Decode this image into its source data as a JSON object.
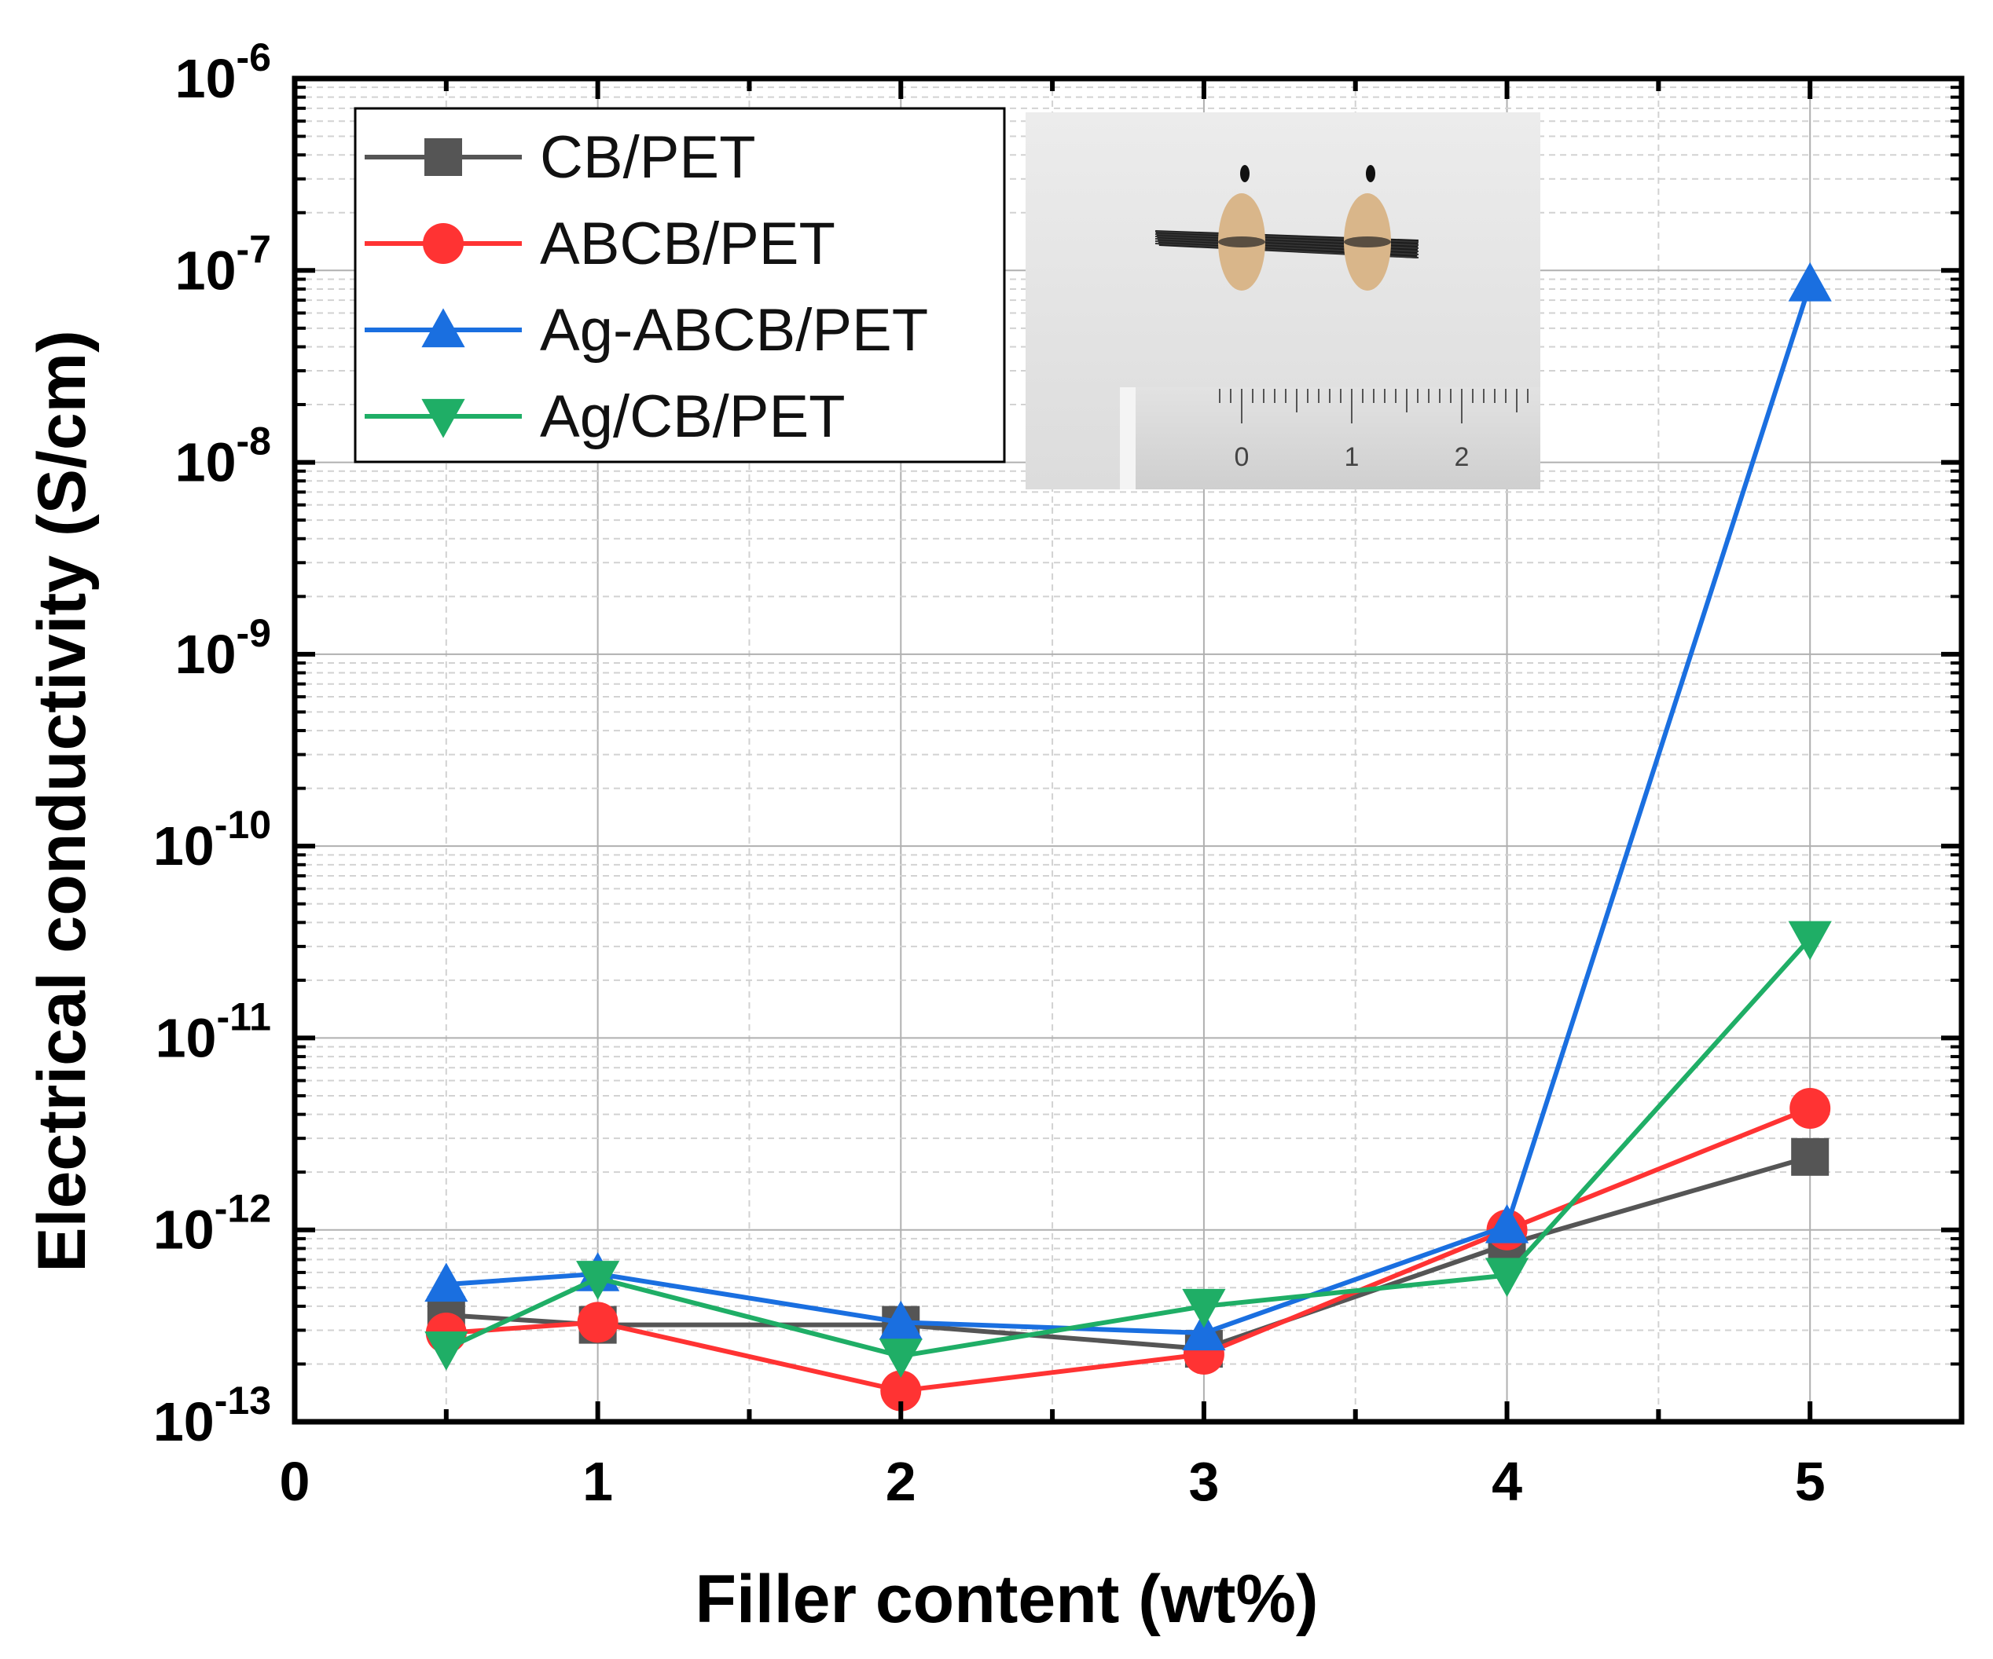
{
  "chart_data": {
    "type": "line",
    "title": "",
    "xlabel": "Filler content (wt%)",
    "ylabel": "Electrical conductivity (S/cm)",
    "xlim": [
      0,
      5.5
    ],
    "ylim": [
      1e-13,
      1e-06
    ],
    "yscale": "log",
    "grid": true,
    "legend_position": "top-left",
    "x_ticks": [
      "0",
      "1",
      "2",
      "3",
      "4",
      "5"
    ],
    "y_ticks": [
      {
        "base": "10",
        "exp": "-13"
      },
      {
        "base": "10",
        "exp": "-12"
      },
      {
        "base": "10",
        "exp": "-11"
      },
      {
        "base": "10",
        "exp": "-10"
      },
      {
        "base": "10",
        "exp": "-9"
      },
      {
        "base": "10",
        "exp": "-8"
      },
      {
        "base": "10",
        "exp": "-7"
      },
      {
        "base": "10",
        "exp": "-6"
      }
    ],
    "x": [
      0.5,
      1,
      2,
      3,
      4,
      5
    ],
    "series": [
      {
        "name": "CB/PET",
        "color": "#555555",
        "marker": "square",
        "values": [
          3.6e-13,
          3.2e-13,
          3.2e-13,
          2.4e-13,
          8.4e-13,
          2.4e-12
        ]
      },
      {
        "name": "ABCB/PET",
        "color": "#ff3333",
        "marker": "circle",
        "values": [
          2.9e-13,
          3.3e-13,
          1.45e-13,
          2.25e-13,
          1e-12,
          4.3e-12
        ]
      },
      {
        "name": "Ag-ABCB/PET",
        "color": "#1a6fe0",
        "marker": "triangle-up",
        "values": [
          5.2e-13,
          5.9e-13,
          3.3e-13,
          2.9e-13,
          1.05e-12,
          8.5e-08
        ]
      },
      {
        "name": "Ag/CB/PET",
        "color": "#1fae66",
        "marker": "triangle-down",
        "values": [
          2.4e-13,
          5.6e-13,
          2.2e-13,
          4e-13,
          5.8e-13,
          3.3e-11
        ]
      }
    ],
    "inset": {
      "description_icon": "photo-icon",
      "ruler_labels": [
        "0",
        "1",
        "2"
      ]
    }
  }
}
